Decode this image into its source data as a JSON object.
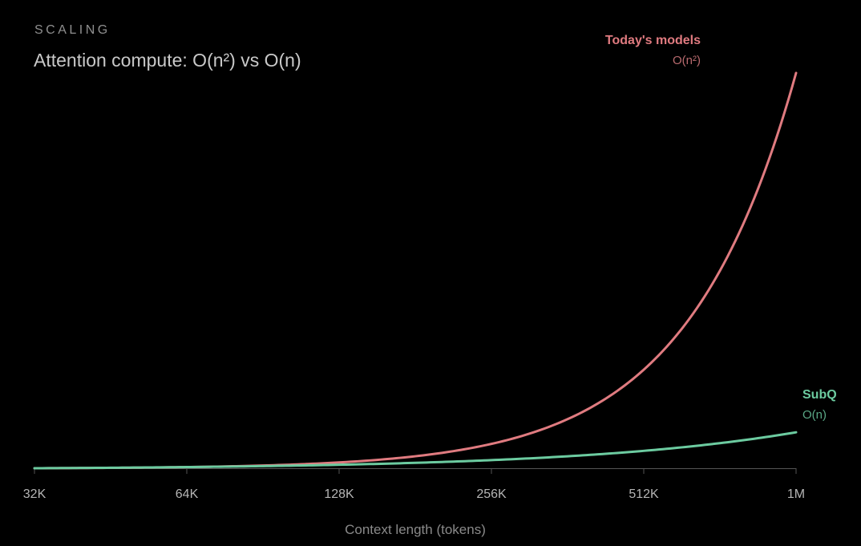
{
  "header": {
    "eyebrow": "SCALING",
    "title": "Attention compute: O(n²) vs O(n)"
  },
  "colors": {
    "quadratic": "#e07b80",
    "linear": "#6ccba0",
    "axis": "#555555",
    "background": "#000000"
  },
  "chart_data": {
    "type": "line",
    "xlabel": "Context length (tokens)",
    "ylabel": "",
    "x_scale": "log2",
    "x_ticks": [
      "32K",
      "64K",
      "128K",
      "256K",
      "512K",
      "1M"
    ],
    "x_tick_values": [
      32,
      64,
      128,
      256,
      512,
      1024
    ],
    "grid": false,
    "series": [
      {
        "name": "Today's models",
        "sublabel": "O(n²)",
        "key": "quadratic",
        "formula": "n^2",
        "x": [
          32,
          64,
          128,
          256,
          512,
          1024
        ]
      },
      {
        "name": "SubQ",
        "sublabel": "O(n)",
        "key": "linear",
        "formula": "n",
        "x": [
          32,
          64,
          128,
          256,
          512,
          1024
        ]
      }
    ]
  }
}
